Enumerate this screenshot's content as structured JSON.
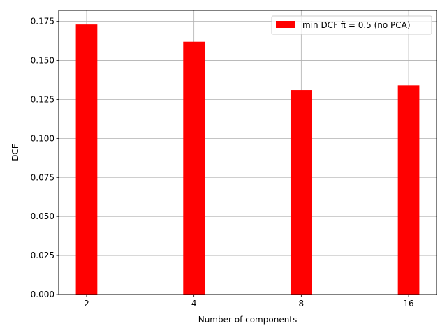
{
  "chart_data": {
    "type": "bar",
    "title": "",
    "xlabel": "Number of components",
    "ylabel": "DCF",
    "categories": [
      "2",
      "4",
      "8",
      "16"
    ],
    "series": [
      {
        "name": "min DCF π̃ = 0.5 (no PCA)",
        "values": [
          0.173,
          0.162,
          0.131,
          0.134
        ],
        "color": "#ff0000"
      }
    ],
    "ylim": [
      0,
      0.182
    ],
    "yticks": [
      0.0,
      0.025,
      0.05,
      0.075,
      0.1,
      0.125,
      0.15,
      0.175
    ],
    "ytick_labels": [
      "0.000",
      "0.025",
      "0.050",
      "0.075",
      "0.100",
      "0.125",
      "0.150",
      "0.175"
    ],
    "grid": true,
    "legend_position": "top-right"
  }
}
